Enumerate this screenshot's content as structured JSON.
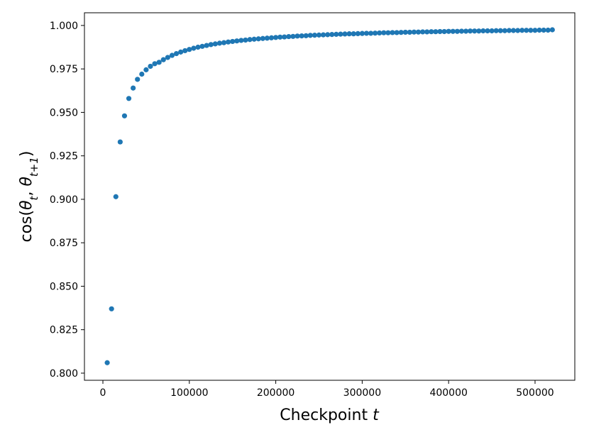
{
  "chart_data": {
    "type": "scatter",
    "x_label": [
      {
        "text": "Checkpoint "
      },
      {
        "text": "t",
        "italic": true
      }
    ],
    "y_label": [
      {
        "text": "cos("
      },
      {
        "text": "θ",
        "italic": true
      },
      {
        "text": "t",
        "italic": true,
        "sub": true
      },
      {
        "text": ", "
      },
      {
        "text": "θ",
        "italic": true
      },
      {
        "text": "t+1",
        "italic": true,
        "sub": true
      },
      {
        "text": ")"
      }
    ],
    "color": "#1f77b4",
    "x": [
      5000,
      10000,
      15000,
      20000,
      25000,
      30000,
      35000,
      40000,
      45000,
      50000,
      55000,
      60000,
      65000,
      70000,
      75000,
      80000,
      85000,
      90000,
      95000,
      100000,
      105000,
      110000,
      115000,
      120000,
      125000,
      130000,
      135000,
      140000,
      145000,
      150000,
      155000,
      160000,
      165000,
      170000,
      175000,
      180000,
      185000,
      190000,
      195000,
      200000,
      205000,
      210000,
      215000,
      220000,
      225000,
      230000,
      235000,
      240000,
      245000,
      250000,
      255000,
      260000,
      265000,
      270000,
      275000,
      280000,
      285000,
      290000,
      295000,
      300000,
      305000,
      310000,
      315000,
      320000,
      325000,
      330000,
      335000,
      340000,
      345000,
      350000,
      355000,
      360000,
      365000,
      370000,
      375000,
      380000,
      385000,
      390000,
      395000,
      400000,
      405000,
      410000,
      415000,
      420000,
      425000,
      430000,
      435000,
      440000,
      445000,
      450000,
      455000,
      460000,
      465000,
      470000,
      475000,
      480000,
      485000,
      490000,
      495000,
      500000,
      505000,
      510000,
      515000,
      520000
    ],
    "values": [
      0.806,
      0.837,
      0.9015,
      0.933,
      0.948,
      0.958,
      0.964,
      0.969,
      0.972,
      0.9745,
      0.9765,
      0.978,
      0.9788,
      0.9803,
      0.9816,
      0.9828,
      0.9838,
      0.9847,
      0.9855,
      0.9862,
      0.9869,
      0.9875,
      0.988,
      0.9885,
      0.989,
      0.9894,
      0.9898,
      0.9901,
      0.9905,
      0.9908,
      0.9911,
      0.9914,
      0.9916,
      0.9919,
      0.9921,
      0.9923,
      0.9925,
      0.9927,
      0.9929,
      0.9931,
      0.9933,
      0.9934,
      0.9936,
      0.9937,
      0.9939,
      0.994,
      0.9941,
      0.9943,
      0.9944,
      0.9945,
      0.9946,
      0.9947,
      0.9948,
      0.9949,
      0.995,
      0.9951,
      0.9952,
      0.9952,
      0.9953,
      0.9954,
      0.9955,
      0.9955,
      0.9956,
      0.9957,
      0.9958,
      0.9958,
      0.9959,
      0.9959,
      0.996,
      0.9961,
      0.9961,
      0.9962,
      0.9962,
      0.9963,
      0.9963,
      0.9964,
      0.9964,
      0.9965,
      0.9965,
      0.9966,
      0.9966,
      0.9966,
      0.9967,
      0.9967,
      0.9968,
      0.9968,
      0.9968,
      0.9969,
      0.9969,
      0.9969,
      0.997,
      0.997,
      0.997,
      0.9971,
      0.9971,
      0.9971,
      0.9972,
      0.9972,
      0.9972,
      0.9972,
      0.9973,
      0.9973,
      0.9973,
      0.9975
    ],
    "xlim": [
      -21350,
      546000
    ],
    "ylim": [
      0.7959,
      1.0073
    ],
    "xticks": [
      0,
      100000,
      200000,
      300000,
      400000,
      500000
    ],
    "yticks": [
      {
        "value": 0.8,
        "label": "0.800"
      },
      {
        "value": 0.825,
        "label": "0.825"
      },
      {
        "value": 0.85,
        "label": "0.850"
      },
      {
        "value": 0.875,
        "label": "0.875"
      },
      {
        "value": 0.9,
        "label": "0.900"
      },
      {
        "value": 0.925,
        "label": "0.925"
      },
      {
        "value": 0.95,
        "label": "0.950"
      },
      {
        "value": 0.975,
        "label": "0.975"
      },
      {
        "value": 1.0,
        "label": "1.000"
      }
    ],
    "grid": false
  }
}
